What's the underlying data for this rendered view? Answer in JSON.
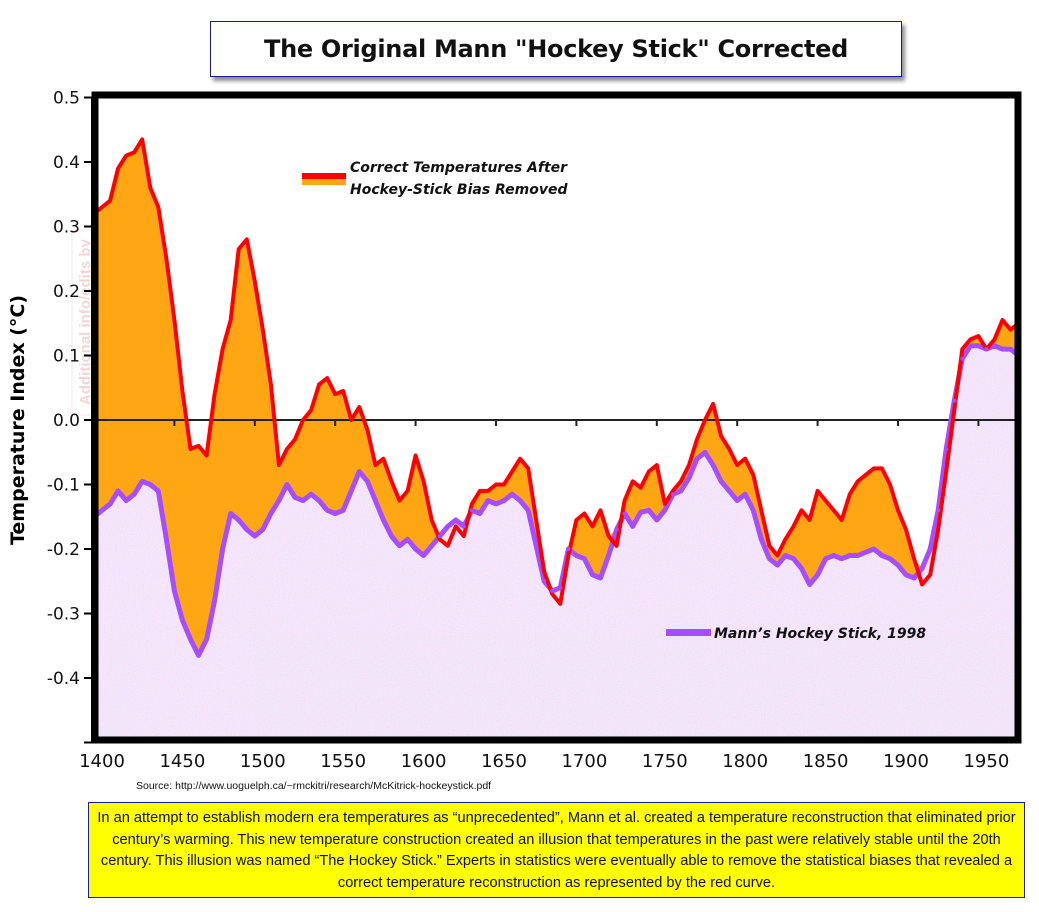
{
  "title": "The Original Mann \"Hockey Stick\" Corrected",
  "source": "Source: http://www.uoguelph.ca/~rmckitri/research/McKitrick-hockeystick.pdf",
  "caption": "In an attempt to establish modern era temperatures as “unprecedented”, Mann et al. created a temperature reconstruction that eliminated prior century’s warming. This new temperature construction created an illusion that temperatures in the past were relatively stable until the 20th century. This illusion was named “The Hockey Stick.” Experts in statistics were eventually able to remove the statistical biases that revealed a correct temperature reconstruction as represented by the red curve.",
  "watermark": [
    "Additional info/edits by",
    "www.c3headlines.com"
  ],
  "colors": {
    "corrected_line": "#ff0000",
    "corrected_fill": "#ffa614",
    "mann_line": "#a64dff",
    "mann_fill": "#ead6f5",
    "frame": "#000000",
    "caption_bg": "#ffff00",
    "border_blue": "#1a1aa8"
  },
  "chart_data": {
    "type": "area",
    "title": "The Original Mann \"Hockey Stick\" Corrected",
    "xlabel": "",
    "ylabel": "Temperature Index (°C)",
    "xlim": [
      1400,
      1985
    ],
    "ylim": [
      -0.5,
      0.5
    ],
    "xticks": [
      1400,
      1450,
      1500,
      1550,
      1600,
      1650,
      1700,
      1750,
      1800,
      1850,
      1900,
      1950
    ],
    "xtick_labels": [
      "1400",
      "1450",
      "1500",
      "1550",
      "1600",
      "1650",
      "1700",
      "1750",
      "1800",
      "1850",
      "1900",
      "1950"
    ],
    "yticks": [
      0.5,
      0.4,
      0.3,
      0.2,
      0.1,
      0.0,
      -0.1,
      -0.2,
      -0.3,
      -0.4
    ],
    "ytick_labels": [
      "0.5",
      "0.4",
      "0.3",
      "0.2",
      "0.1",
      "0.0",
      "-0.1",
      "-0.2",
      "-0.3",
      "-0.4"
    ],
    "zero_line": true,
    "grid": false,
    "legend": [
      {
        "name": "Correct Temperatures After Hockey-Stick Bias Removed",
        "lines": [
          "Correct Temperatures After",
          "Hockey-Stick Bias Removed"
        ],
        "placement": "top-left"
      },
      {
        "name": "Mann’s Hockey Stick, 1998",
        "lines": [
          "Mann’s Hockey Stick, 1998"
        ],
        "placement": "bottom-right"
      }
    ],
    "x": [
      1400,
      1410,
      1415,
      1420,
      1425,
      1430,
      1435,
      1440,
      1445,
      1450,
      1455,
      1460,
      1465,
      1470,
      1475,
      1480,
      1485,
      1490,
      1495,
      1500,
      1505,
      1510,
      1515,
      1520,
      1525,
      1530,
      1535,
      1540,
      1545,
      1550,
      1555,
      1560,
      1565,
      1570,
      1575,
      1580,
      1585,
      1590,
      1595,
      1600,
      1605,
      1610,
      1615,
      1620,
      1625,
      1630,
      1635,
      1640,
      1645,
      1650,
      1655,
      1660,
      1665,
      1670,
      1675,
      1680,
      1685,
      1690,
      1695,
      1700,
      1705,
      1710,
      1715,
      1720,
      1725,
      1730,
      1735,
      1740,
      1745,
      1750,
      1755,
      1760,
      1765,
      1770,
      1775,
      1780,
      1785,
      1790,
      1795,
      1800,
      1805,
      1810,
      1815,
      1820,
      1825,
      1830,
      1835,
      1840,
      1845,
      1850,
      1855,
      1860,
      1865,
      1870,
      1875,
      1880,
      1885,
      1890,
      1895,
      1900,
      1905,
      1910,
      1915,
      1920,
      1925,
      1930,
      1935,
      1940,
      1945,
      1950,
      1955,
      1960,
      1965,
      1970,
      1975,
      1980
    ],
    "series": [
      {
        "name": "Correct Temperatures After Hockey-Stick Bias Removed",
        "color": "#ff0000",
        "values": [
          0.32,
          0.34,
          0.39,
          0.41,
          0.415,
          0.435,
          0.36,
          0.33,
          0.25,
          0.155,
          0.045,
          -0.045,
          -0.04,
          -0.055,
          0.04,
          0.11,
          0.155,
          0.265,
          0.28,
          0.215,
          0.14,
          0.055,
          -0.07,
          -0.045,
          -0.03,
          0.0,
          0.015,
          0.055,
          0.065,
          0.04,
          0.045,
          0.0,
          0.02,
          -0.015,
          -0.07,
          -0.06,
          -0.095,
          -0.125,
          -0.11,
          -0.055,
          -0.095,
          -0.155,
          -0.185,
          -0.195,
          -0.165,
          -0.18,
          -0.13,
          -0.11,
          -0.11,
          -0.1,
          -0.1,
          -0.08,
          -0.06,
          -0.075,
          -0.155,
          -0.235,
          -0.27,
          -0.285,
          -0.21,
          -0.155,
          -0.145,
          -0.165,
          -0.14,
          -0.18,
          -0.195,
          -0.125,
          -0.095,
          -0.105,
          -0.08,
          -0.07,
          -0.13,
          -0.11,
          -0.095,
          -0.07,
          -0.03,
          0.0,
          0.025,
          -0.025,
          -0.045,
          -0.07,
          -0.06,
          -0.085,
          -0.14,
          -0.195,
          -0.21,
          -0.185,
          -0.165,
          -0.14,
          -0.155,
          -0.11,
          -0.125,
          -0.14,
          -0.155,
          -0.115,
          -0.095,
          -0.085,
          -0.075,
          -0.075,
          -0.1,
          -0.14,
          -0.17,
          -0.215,
          -0.255,
          -0.24,
          -0.17,
          -0.08,
          0.015,
          0.11,
          0.125,
          0.13,
          0.11,
          0.125,
          0.155,
          0.14,
          0.15,
          0.15
        ]
      },
      {
        "name": "Mann’s Hockey Stick, 1998",
        "color": "#a64dff",
        "values": [
          -0.15,
          -0.13,
          -0.11,
          -0.125,
          -0.115,
          -0.095,
          -0.1,
          -0.11,
          -0.185,
          -0.265,
          -0.31,
          -0.34,
          -0.365,
          -0.34,
          -0.28,
          -0.2,
          -0.145,
          -0.155,
          -0.17,
          -0.18,
          -0.17,
          -0.145,
          -0.125,
          -0.1,
          -0.12,
          -0.125,
          -0.115,
          -0.125,
          -0.14,
          -0.145,
          -0.14,
          -0.11,
          -0.08,
          -0.095,
          -0.125,
          -0.155,
          -0.18,
          -0.195,
          -0.185,
          -0.2,
          -0.21,
          -0.195,
          -0.18,
          -0.165,
          -0.155,
          -0.165,
          -0.14,
          -0.145,
          -0.125,
          -0.13,
          -0.125,
          -0.115,
          -0.125,
          -0.14,
          -0.195,
          -0.25,
          -0.265,
          -0.26,
          -0.2,
          -0.21,
          -0.215,
          -0.24,
          -0.245,
          -0.21,
          -0.17,
          -0.145,
          -0.165,
          -0.143,
          -0.14,
          -0.155,
          -0.14,
          -0.115,
          -0.11,
          -0.09,
          -0.06,
          -0.05,
          -0.07,
          -0.095,
          -0.11,
          -0.125,
          -0.115,
          -0.14,
          -0.185,
          -0.215,
          -0.225,
          -0.21,
          -0.215,
          -0.23,
          -0.255,
          -0.24,
          -0.215,
          -0.21,
          -0.215,
          -0.21,
          -0.21,
          -0.205,
          -0.2,
          -0.21,
          -0.215,
          -0.225,
          -0.24,
          -0.245,
          -0.23,
          -0.2,
          -0.14,
          -0.045,
          0.03,
          0.095,
          0.115,
          0.115,
          0.11,
          0.115,
          0.11,
          0.11,
          0.1,
          0.095
        ]
      }
    ]
  }
}
